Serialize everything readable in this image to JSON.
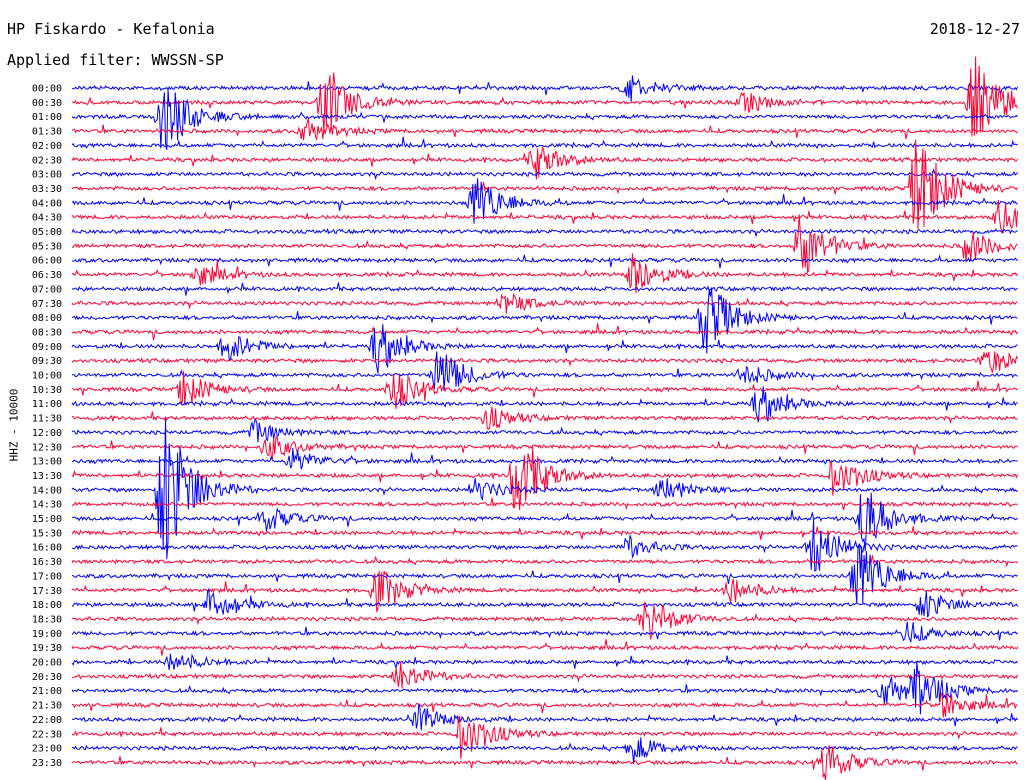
{
  "header": {
    "station": "HP Fiskardo - Kefalonia",
    "date": "2018-12-27",
    "filter": "Applied filter: WWSSN-SP"
  },
  "ylabel": "HHZ - 10000",
  "colors": {
    "odd": "#0000ff",
    "even": "#ff0033",
    "axis": "#000000"
  },
  "chart_data": {
    "type": "line",
    "title": "HP Fiskardo - Kefalonia",
    "channel": "HHZ",
    "ylabel": "HHZ - 10000",
    "rows": [
      "00:00",
      "00:30",
      "01:00",
      "01:30",
      "02:00",
      "02:30",
      "03:00",
      "03:30",
      "04:00",
      "04:30",
      "05:00",
      "05:30",
      "06:00",
      "06:30",
      "07:00",
      "07:30",
      "08:00",
      "08:30",
      "09:00",
      "09:30",
      "10:00",
      "10:30",
      "11:00",
      "11:30",
      "12:00",
      "12:30",
      "13:00",
      "13:30",
      "14:00",
      "14:30",
      "15:00",
      "15:30",
      "16:00",
      "16:30",
      "17:00",
      "17:30",
      "18:00",
      "18:30",
      "19:00",
      "19:30",
      "20:00",
      "20:30",
      "21:00",
      "21:30",
      "22:00",
      "22:30",
      "23:00",
      "23:30"
    ],
    "minutes_per_row": 30,
    "events": [
      {
        "row": 0,
        "minute": 17.6,
        "amp": 1.2
      },
      {
        "row": 1,
        "minute": 8.0,
        "amp": 3.0
      },
      {
        "row": 1,
        "minute": 21.3,
        "amp": 1.0
      },
      {
        "row": 1,
        "minute": 28.6,
        "amp": 4.0
      },
      {
        "row": 2,
        "minute": 2.9,
        "amp": 3.5
      },
      {
        "row": 3,
        "minute": 7.4,
        "amp": 1.2
      },
      {
        "row": 5,
        "minute": 14.7,
        "amp": 1.6
      },
      {
        "row": 7,
        "minute": 26.8,
        "amp": 5.0
      },
      {
        "row": 8,
        "minute": 12.8,
        "amp": 2.5
      },
      {
        "row": 9,
        "minute": 29.4,
        "amp": 1.5
      },
      {
        "row": 11,
        "minute": 28.4,
        "amp": 1.5
      },
      {
        "row": 11,
        "minute": 23.1,
        "amp": 3.0
      },
      {
        "row": 13,
        "minute": 4.0,
        "amp": 1.0
      },
      {
        "row": 13,
        "minute": 17.8,
        "amp": 2.0
      },
      {
        "row": 15,
        "minute": 13.7,
        "amp": 1.0
      },
      {
        "row": 16,
        "minute": 20.1,
        "amp": 3.5
      },
      {
        "row": 18,
        "minute": 4.9,
        "amp": 1.4
      },
      {
        "row": 18,
        "minute": 9.7,
        "amp": 2.2
      },
      {
        "row": 19,
        "minute": 29.0,
        "amp": 1.2
      },
      {
        "row": 20,
        "minute": 11.6,
        "amp": 2.5
      },
      {
        "row": 20,
        "minute": 21.3,
        "amp": 1.0
      },
      {
        "row": 21,
        "minute": 3.5,
        "amp": 1.6
      },
      {
        "row": 21,
        "minute": 10.2,
        "amp": 1.8
      },
      {
        "row": 22,
        "minute": 21.8,
        "amp": 1.6
      },
      {
        "row": 23,
        "minute": 13.2,
        "amp": 1.0
      },
      {
        "row": 24,
        "minute": 5.8,
        "amp": 1.0
      },
      {
        "row": 25,
        "minute": 6.2,
        "amp": 1.2
      },
      {
        "row": 26,
        "minute": 7.0,
        "amp": 1.0
      },
      {
        "row": 27,
        "minute": 14.1,
        "amp": 4.0
      },
      {
        "row": 27,
        "minute": 24.2,
        "amp": 2.0
      },
      {
        "row": 28,
        "minute": 2.9,
        "amp": 8.0
      },
      {
        "row": 28,
        "minute": 12.8,
        "amp": 1.0
      },
      {
        "row": 28,
        "minute": 18.7,
        "amp": 1.2
      },
      {
        "row": 30,
        "minute": 25.1,
        "amp": 3.0
      },
      {
        "row": 30,
        "minute": 6.1,
        "amp": 1.2
      },
      {
        "row": 32,
        "minute": 23.5,
        "amp": 2.5
      },
      {
        "row": 32,
        "minute": 17.6,
        "amp": 1.0
      },
      {
        "row": 34,
        "minute": 24.9,
        "amp": 3.5
      },
      {
        "row": 35,
        "minute": 9.7,
        "amp": 2.0
      },
      {
        "row": 35,
        "minute": 20.9,
        "amp": 1.2
      },
      {
        "row": 36,
        "minute": 4.4,
        "amp": 1.6
      },
      {
        "row": 36,
        "minute": 27.0,
        "amp": 1.4
      },
      {
        "row": 37,
        "minute": 18.2,
        "amp": 2.2
      },
      {
        "row": 38,
        "minute": 26.4,
        "amp": 1.0
      },
      {
        "row": 40,
        "minute": 3.2,
        "amp": 1.0
      },
      {
        "row": 41,
        "minute": 10.4,
        "amp": 1.4
      },
      {
        "row": 42,
        "minute": 26.8,
        "amp": 2.0
      },
      {
        "row": 42,
        "minute": 25.8,
        "amp": 1.5
      },
      {
        "row": 43,
        "minute": 27.6,
        "amp": 1.2
      },
      {
        "row": 44,
        "minute": 11.0,
        "amp": 1.2
      },
      {
        "row": 45,
        "minute": 12.4,
        "amp": 2.5
      },
      {
        "row": 46,
        "minute": 17.8,
        "amp": 1.2
      },
      {
        "row": 47,
        "minute": 23.9,
        "amp": 1.8
      }
    ]
  }
}
